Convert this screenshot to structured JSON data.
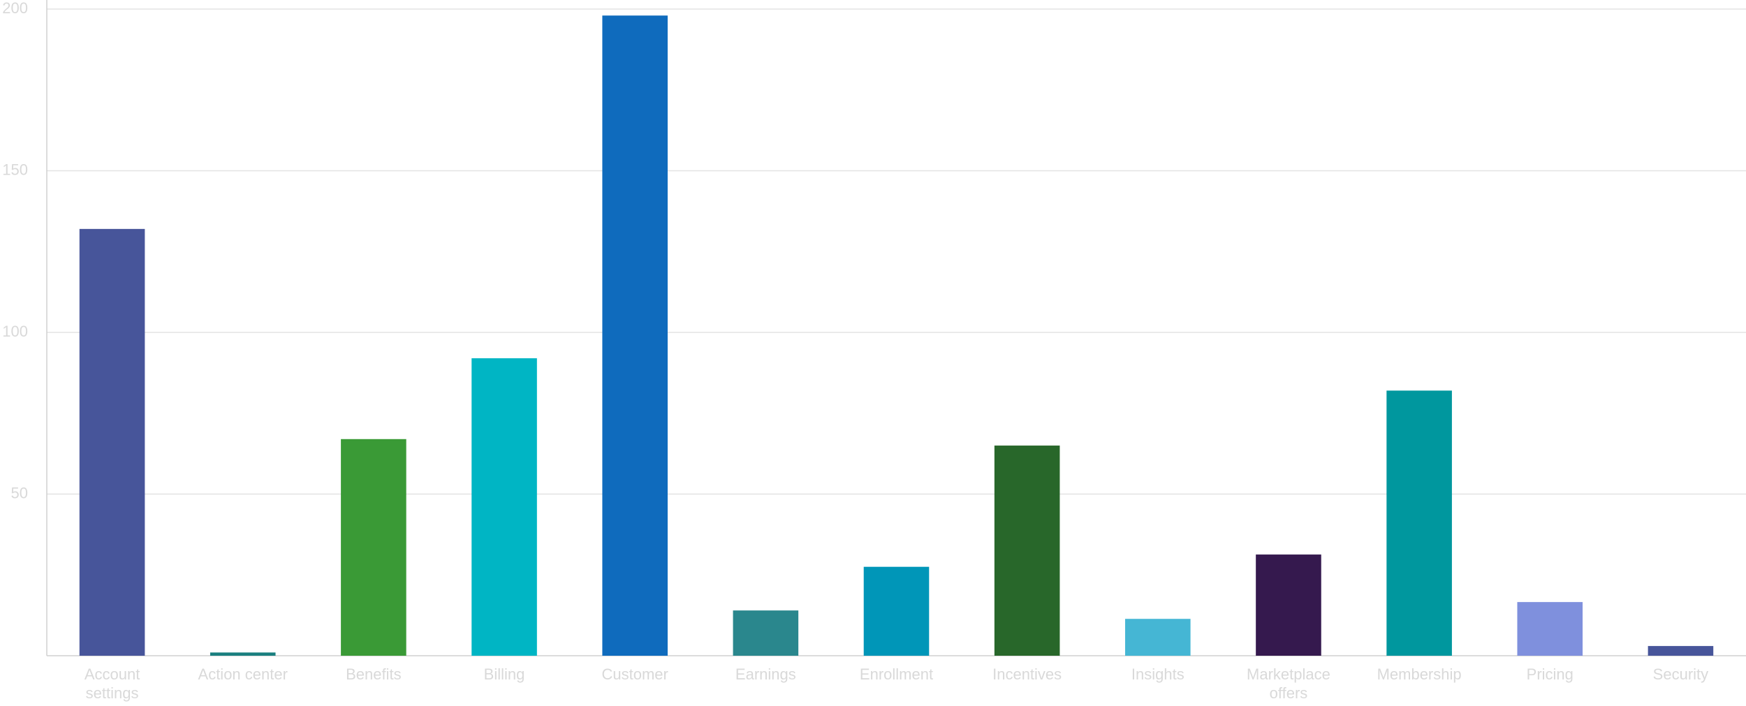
{
  "chart_data": {
    "type": "bar",
    "categories": [
      "Account settings",
      "Action center",
      "Benefits",
      "Billing",
      "Customer",
      "Earnings",
      "Enrollment",
      "Incentives",
      "Insights",
      "Marketplace offers",
      "Membership",
      "Pricing",
      "Security"
    ],
    "values": [
      132,
      1,
      67,
      92,
      198,
      14,
      27.5,
      65,
      11.4,
      31.3,
      82,
      16.6,
      3
    ],
    "colors": [
      "#47559a",
      "#1a7f7f",
      "#3a9a36",
      "#00b5c4",
      "#0f6bbd",
      "#2a878d",
      "#0096b8",
      "#28672a",
      "#45b6d4",
      "#35194e",
      "#00979e",
      "#7f90dd",
      "#47559a"
    ],
    "ylim": [
      0,
      200
    ],
    "yticks": [
      50,
      100,
      150,
      200
    ],
    "grid": true
  }
}
